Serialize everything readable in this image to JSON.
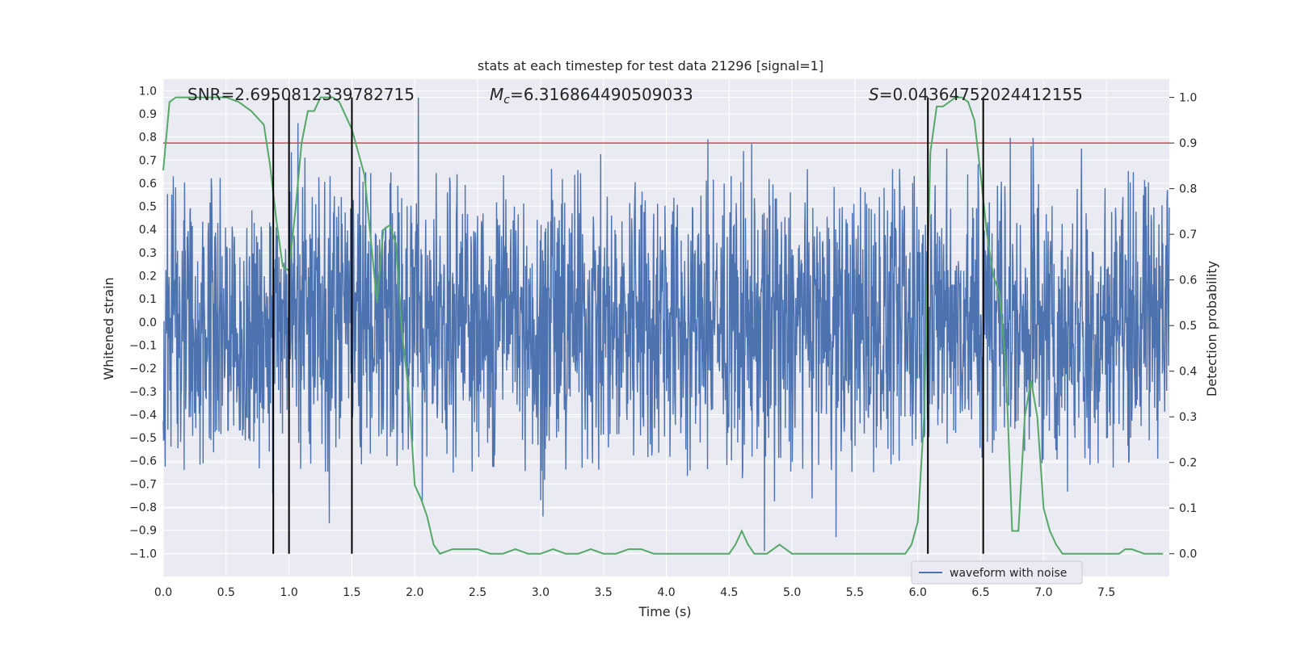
{
  "chart_data": {
    "type": "line",
    "title": "stats at each timestep for test data 21296 [signal=1]",
    "xlabel": "Time (s)",
    "ylabel_left": "Whitened strain",
    "ylabel_right": "Detection probability",
    "xlim": [
      0.0,
      8.0
    ],
    "ylim_left": [
      -1.1,
      1.05
    ],
    "ylim_right": [
      -0.05,
      1.04
    ],
    "x_ticks": [
      "0.0",
      "0.5",
      "1.0",
      "1.5",
      "2.0",
      "2.5",
      "3.0",
      "3.5",
      "4.0",
      "4.5",
      "5.0",
      "5.5",
      "6.0",
      "6.5",
      "7.0",
      "7.5"
    ],
    "y_left_ticks": [
      "1.0",
      "0.9",
      "0.8",
      "0.7",
      "0.6",
      "0.5",
      "0.4",
      "0.3",
      "0.2",
      "0.1",
      "0.0",
      "-0.1",
      "-0.2",
      "-0.3",
      "-0.4",
      "-0.5",
      "-0.6",
      "-0.7",
      "-0.8",
      "-0.9",
      "-1.0"
    ],
    "y_right_ticks": [
      "1.0",
      "0.9",
      "0.8",
      "0.7",
      "0.6",
      "0.5",
      "0.4",
      "0.3",
      "0.2",
      "0.1",
      "0.0"
    ],
    "grid": true,
    "annotations": {
      "snr": "SNR=2.6950812339782715",
      "mc_symbol": "M",
      "mc_sub": "c",
      "mc_value": "=6.316864490509033",
      "s_symbol": "S",
      "s_value": "=0.04364752024412155"
    },
    "threshold": {
      "value_right": 0.9,
      "color": "#c44e52"
    },
    "vertical_lines_x": [
      0.875,
      1.0,
      1.5,
      6.08,
      6.52
    ],
    "legend": {
      "entries": [
        "waveform with noise"
      ],
      "position": "lower-right"
    },
    "series": [
      {
        "name": "waveform with noise",
        "axis": "left",
        "color": "#4c72b0",
        "description_kind": "noise",
        "envelope_typical": 0.45,
        "peaks": [
          {
            "x": 0.08,
            "y": 0.63
          },
          {
            "x": 0.87,
            "y": -0.74
          },
          {
            "x": 1.07,
            "y": 0.86
          },
          {
            "x": 1.32,
            "y": -0.87
          },
          {
            "x": 2.03,
            "y": 0.97
          },
          {
            "x": 2.06,
            "y": -0.78
          },
          {
            "x": 3.02,
            "y": -0.84
          },
          {
            "x": 3.0,
            "y": -0.77
          },
          {
            "x": 4.33,
            "y": 0.79
          },
          {
            "x": 4.68,
            "y": 0.77
          },
          {
            "x": 4.78,
            "y": -0.99
          },
          {
            "x": 5.35,
            "y": -0.93
          },
          {
            "x": 6.23,
            "y": 0.75
          },
          {
            "x": 6.9,
            "y": 0.76
          },
          {
            "x": 7.3,
            "y": 0.75
          }
        ]
      },
      {
        "name": "",
        "axis": "right",
        "color": "#55a868",
        "x": [
          0.0,
          0.05,
          0.1,
          0.2,
          0.3,
          0.4,
          0.5,
          0.6,
          0.7,
          0.8,
          0.85,
          0.9,
          0.95,
          1.0,
          1.05,
          1.1,
          1.15,
          1.2,
          1.25,
          1.3,
          1.35,
          1.4,
          1.45,
          1.5,
          1.55,
          1.6,
          1.65,
          1.7,
          1.75,
          1.8,
          1.85,
          1.9,
          1.95,
          2.0,
          2.05,
          2.1,
          2.15,
          2.2,
          2.3,
          2.4,
          2.5,
          2.6,
          2.7,
          2.8,
          2.9,
          3.0,
          3.1,
          3.2,
          3.3,
          3.4,
          3.5,
          3.6,
          3.7,
          3.8,
          3.9,
          4.0,
          4.1,
          4.2,
          4.3,
          4.4,
          4.5,
          4.55,
          4.6,
          4.65,
          4.7,
          4.75,
          4.8,
          4.85,
          4.9,
          4.95,
          5.0,
          5.1,
          5.2,
          5.3,
          5.4,
          5.5,
          5.6,
          5.7,
          5.8,
          5.85,
          5.9,
          5.95,
          6.0,
          6.05,
          6.1,
          6.15,
          6.2,
          6.25,
          6.3,
          6.35,
          6.4,
          6.45,
          6.5,
          6.55,
          6.6,
          6.65,
          6.7,
          6.75,
          6.8,
          6.85,
          6.9,
          6.95,
          7.0,
          7.05,
          7.1,
          7.15,
          7.2,
          7.3,
          7.4,
          7.5,
          7.6,
          7.65,
          7.7,
          7.8,
          7.9,
          7.95
        ],
        "values": [
          0.84,
          0.99,
          1.0,
          1.0,
          1.0,
          1.0,
          1.0,
          0.99,
          0.97,
          0.94,
          0.85,
          0.73,
          0.63,
          0.62,
          0.75,
          0.9,
          0.97,
          0.97,
          1.0,
          1.0,
          1.0,
          0.99,
          0.96,
          0.93,
          0.88,
          0.83,
          0.69,
          0.55,
          0.71,
          0.72,
          0.68,
          0.48,
          0.36,
          0.15,
          0.12,
          0.08,
          0.02,
          0.0,
          0.01,
          0.01,
          0.01,
          0.0,
          0.0,
          0.01,
          0.0,
          0.0,
          0.01,
          0.0,
          0.0,
          0.01,
          0.0,
          0.0,
          0.01,
          0.01,
          0.0,
          0.0,
          0.0,
          0.0,
          0.0,
          0.0,
          0.0,
          0.02,
          0.05,
          0.02,
          0.0,
          0.0,
          0.0,
          0.01,
          0.02,
          0.01,
          0.0,
          0.0,
          0.0,
          0.0,
          0.0,
          0.0,
          0.0,
          0.0,
          0.0,
          0.0,
          0.0,
          0.02,
          0.07,
          0.3,
          0.88,
          0.98,
          0.98,
          0.99,
          1.0,
          1.0,
          0.99,
          0.95,
          0.83,
          0.7,
          0.61,
          0.57,
          0.41,
          0.05,
          0.05,
          0.3,
          0.38,
          0.3,
          0.1,
          0.05,
          0.02,
          0.0,
          0.0,
          0.0,
          0.0,
          0.0,
          0.0,
          0.01,
          0.01,
          0.0,
          0.0,
          0.0
        ]
      }
    ],
    "colors": {
      "plot_bg": "#eaeaf2",
      "grid": "#ffffff",
      "axis_text": "#262626",
      "vline": "#000000"
    }
  }
}
